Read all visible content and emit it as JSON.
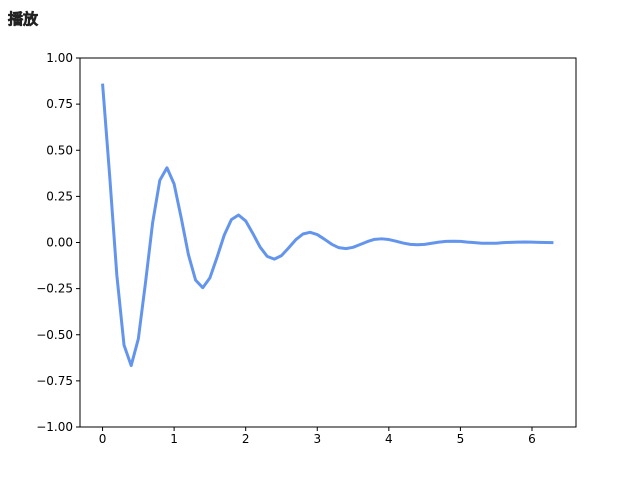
{
  "button_label": "播放",
  "chart_data": {
    "type": "line",
    "color": "#6495ed",
    "line_width": 3,
    "x": [
      0,
      0.1,
      0.2,
      0.3,
      0.4,
      0.5,
      0.6,
      0.7,
      0.8,
      0.9,
      1,
      1.1,
      1.2,
      1.3,
      1.4,
      1.5,
      1.6,
      1.7,
      1.8,
      1.9,
      2,
      2.1,
      2.2,
      2.3,
      2.4,
      2.5,
      2.6,
      2.7,
      2.8,
      2.9,
      3,
      3.1,
      3.2,
      3.3,
      3.4,
      3.5,
      3.6,
      3.7,
      3.8,
      3.9,
      4,
      4.1,
      4.2,
      4.3,
      4.4,
      4.5,
      4.6,
      4.7,
      4.8,
      4.9,
      5,
      5.1,
      5.2,
      5.3,
      5.4,
      5.5,
      5.6,
      5.7,
      5.8,
      5.9,
      6,
      6.1,
      6.2,
      6.3
    ],
    "values": [
      0.861,
      0.359,
      -0.179,
      -0.556,
      -0.667,
      -0.522,
      -0.218,
      0.108,
      0.337,
      0.405,
      0.317,
      0.132,
      -0.066,
      -0.204,
      -0.245,
      -0.192,
      -0.08,
      0.04,
      0.124,
      0.149,
      0.117,
      0.049,
      -0.024,
      -0.075,
      -0.09,
      -0.071,
      -0.029,
      0.015,
      0.046,
      0.055,
      0.043,
      0.018,
      -0.009,
      -0.028,
      -0.033,
      -0.026,
      -0.011,
      0.005,
      0.017,
      0.02,
      0.016,
      0.007,
      -0.003,
      -0.01,
      -0.012,
      -0.01,
      -0.004,
      0.002,
      0.006,
      0.007,
      0.006,
      0.002,
      -0.001,
      -0.004,
      -0.004,
      -0.004,
      -0.001,
      0.001,
      0.002,
      0.003,
      0.002,
      0.001,
      0,
      -0.001
    ],
    "xlim": [
      -0.315,
      6.615
    ],
    "xticks": [
      0,
      1,
      2,
      3,
      4,
      5,
      6
    ],
    "ylim": [
      -1,
      1
    ],
    "yticks": [
      {
        "value": -1,
        "label": "−1.00"
      },
      {
        "value": -0.75,
        "label": "−0.75"
      },
      {
        "value": -0.5,
        "label": "−0.50"
      },
      {
        "value": -0.25,
        "label": "−0.25"
      },
      {
        "value": 0,
        "label": "0.00"
      },
      {
        "value": 0.25,
        "label": "0.25"
      },
      {
        "value": 0.5,
        "label": "0.50"
      },
      {
        "value": 0.75,
        "label": "0.75"
      },
      {
        "value": 1,
        "label": "1.00"
      }
    ]
  }
}
